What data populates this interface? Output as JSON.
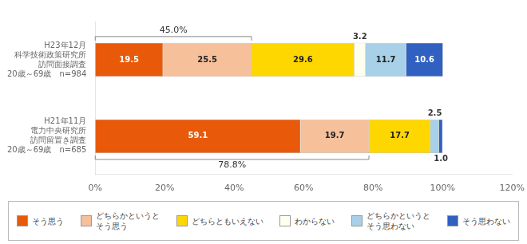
{
  "chart_data": {
    "type": "bar",
    "orientation": "horizontal",
    "stacked": true,
    "data_labels": true,
    "grid": false,
    "legend": "bottom",
    "categories": [
      "H23年12月\n科学技術政策研究所\n訪問面接調査\n20歳～69歳　n=984",
      "H21年11月\n電力中央研究所\n訪問留置き調査\n20歳～69歳　n=685"
    ],
    "series": [
      {
        "name": "そう思う",
        "color": "#E85A0A",
        "values": [
          19.5,
          59.1
        ],
        "value_labels": [
          "19.5",
          "59.1"
        ]
      },
      {
        "name": "どちらかというと\nそう思う",
        "color": "#F5C09A",
        "values": [
          25.5,
          19.7
        ],
        "value_labels": [
          "25.5",
          "19.7"
        ]
      },
      {
        "name": "どちらともいえない",
        "color": "#FFD700",
        "values": [
          29.6,
          17.7
        ],
        "value_labels": [
          "29.6",
          "17.7"
        ]
      },
      {
        "name": "わからない",
        "color": "#FFFFF0",
        "values": [
          3.2,
          null
        ],
        "value_labels": [
          "3.2",
          null
        ]
      },
      {
        "name": "どちらかというと\nそう思わない",
        "color": "#A8D0E8",
        "values": [
          11.7,
          2.5
        ],
        "value_labels": [
          "11.7",
          "2.5"
        ]
      },
      {
        "name": "そう思わない",
        "color": "#3060C0",
        "values": [
          10.6,
          1.0
        ],
        "value_labels": [
          "10.6",
          "1.0"
        ]
      }
    ],
    "xlim": [
      0,
      120
    ],
    "xticks": [
      {
        "value": 0,
        "label": "0%"
      },
      {
        "value": 20,
        "label": "20%"
      },
      {
        "value": 40,
        "label": "40%"
      },
      {
        "value": 60,
        "label": "60%"
      },
      {
        "value": 80,
        "label": "80%"
      },
      {
        "value": 100,
        "label": "100%"
      },
      {
        "value": 120,
        "label": "120%"
      }
    ],
    "annotations": [
      {
        "text": "45.0%",
        "category": "H23年12月\n科学技術政策研究所\n訪問面接調査\n20歳～69歳　n=984",
        "x": 45.0
      },
      {
        "text": "78.8%",
        "category": "H21年11月\n電力中央研究所\n訪問留置き調査\n20歳～69歳　n=685",
        "x": 78.8
      }
    ]
  }
}
